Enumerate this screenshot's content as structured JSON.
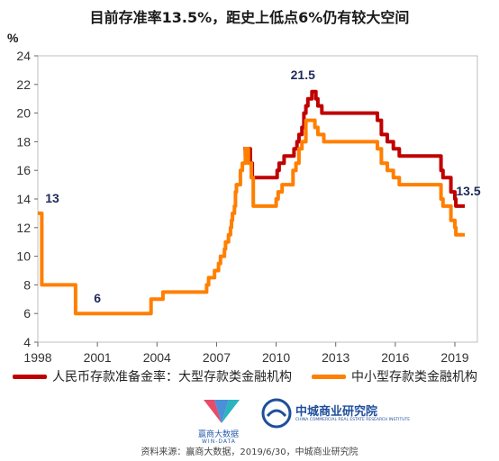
{
  "title": "目前存准率13.5%，距史上低点6%仍有较大空间",
  "source": "资料来源：赢商大数据，2019/6/30，中城商业研究院",
  "logos": {
    "left_name": "赢商大数据",
    "left_sub": "WIN-DATA",
    "right_name": "中城商业研究院",
    "right_sub": "CHINA COMMERCIAL REAL ESTATE RESEARCH INSTITUTE"
  },
  "colors": {
    "large": "#C00000",
    "small": "#FF7F00",
    "label": "#1F2A5A",
    "axis": "#666666"
  },
  "chart_data": {
    "type": "line",
    "title": "目前存准率13.5%，距史上低点6%仍有较大空间",
    "ylabel": "%",
    "ylim": [
      4,
      24
    ],
    "yticks": [
      4,
      6,
      8,
      10,
      12,
      14,
      16,
      18,
      20,
      22,
      24
    ],
    "xlim": [
      1998,
      2019.9
    ],
    "xticks": [
      1998,
      2001,
      2004,
      2007,
      2010,
      2013,
      2016,
      2019
    ],
    "grid": false,
    "legend_position": "bottom",
    "series": [
      {
        "name": "人民币存款准备金率：大型存款类金融机构",
        "color": "#C00000",
        "points": [
          [
            2008.35,
            17.5
          ],
          [
            2008.45,
            17.0
          ],
          [
            2008.55,
            17.5
          ],
          [
            2008.7,
            16.5
          ],
          [
            2008.8,
            15.5
          ],
          [
            2010.05,
            16.0
          ],
          [
            2010.15,
            16.5
          ],
          [
            2010.4,
            17.0
          ],
          [
            2010.9,
            17.5
          ],
          [
            2011.05,
            18.0
          ],
          [
            2011.15,
            18.5
          ],
          [
            2011.3,
            19.0
          ],
          [
            2011.4,
            20.0
          ],
          [
            2011.5,
            20.5
          ],
          [
            2011.6,
            21.0
          ],
          [
            2011.8,
            21.5
          ],
          [
            2012.0,
            21.0
          ],
          [
            2012.1,
            20.5
          ],
          [
            2012.3,
            20.0
          ],
          [
            2015.1,
            19.5
          ],
          [
            2015.3,
            18.5
          ],
          [
            2015.6,
            18.0
          ],
          [
            2015.9,
            17.5
          ],
          [
            2016.2,
            17.0
          ],
          [
            2018.3,
            16.0
          ],
          [
            2018.4,
            15.5
          ],
          [
            2018.8,
            14.5
          ],
          [
            2019.0,
            14.0
          ],
          [
            2019.05,
            13.5
          ],
          [
            2019.5,
            13.5
          ]
        ]
      },
      {
        "name": "中小型存款类金融机构",
        "color": "#FF7F00",
        "points": [
          [
            1998.0,
            13.0
          ],
          [
            1998.2,
            8.0
          ],
          [
            1999.9,
            6.0
          ],
          [
            2003.7,
            7.0
          ],
          [
            2004.3,
            7.5
          ],
          [
            2006.5,
            8.0
          ],
          [
            2006.6,
            8.5
          ],
          [
            2006.9,
            9.0
          ],
          [
            2007.1,
            9.5
          ],
          [
            2007.2,
            10.0
          ],
          [
            2007.4,
            10.5
          ],
          [
            2007.45,
            11.0
          ],
          [
            2007.6,
            11.5
          ],
          [
            2007.7,
            12.0
          ],
          [
            2007.75,
            12.5
          ],
          [
            2007.8,
            13.0
          ],
          [
            2007.9,
            13.5
          ],
          [
            2007.95,
            14.5
          ],
          [
            2008.0,
            15.0
          ],
          [
            2008.2,
            16.0
          ],
          [
            2008.3,
            16.5
          ],
          [
            2008.45,
            17.5
          ],
          [
            2008.6,
            16.5
          ],
          [
            2008.75,
            15.5
          ],
          [
            2008.85,
            13.5
          ],
          [
            2010.0,
            14.0
          ],
          [
            2010.1,
            14.5
          ],
          [
            2010.3,
            15.0
          ],
          [
            2010.85,
            16.0
          ],
          [
            2011.0,
            16.5
          ],
          [
            2011.15,
            17.5
          ],
          [
            2011.3,
            18.0
          ],
          [
            2011.5,
            19.5
          ],
          [
            2011.95,
            19.0
          ],
          [
            2012.1,
            18.5
          ],
          [
            2012.4,
            18.0
          ],
          [
            2015.1,
            17.5
          ],
          [
            2015.3,
            16.5
          ],
          [
            2015.6,
            16.0
          ],
          [
            2015.9,
            15.5
          ],
          [
            2016.2,
            15.0
          ],
          [
            2018.3,
            14.0
          ],
          [
            2018.4,
            13.5
          ],
          [
            2018.8,
            12.5
          ],
          [
            2019.0,
            12.0
          ],
          [
            2019.05,
            11.5
          ],
          [
            2019.5,
            11.5
          ]
        ]
      }
    ],
    "annotations": [
      {
        "text": "13",
        "x": 1998.0,
        "y": 13.0
      },
      {
        "text": "6",
        "x": 2001.0,
        "y": 6.0
      },
      {
        "text": "21.5",
        "x": 2011.8,
        "y": 21.5
      },
      {
        "text": "13.5",
        "x": 2019.5,
        "y": 13.5
      }
    ]
  }
}
